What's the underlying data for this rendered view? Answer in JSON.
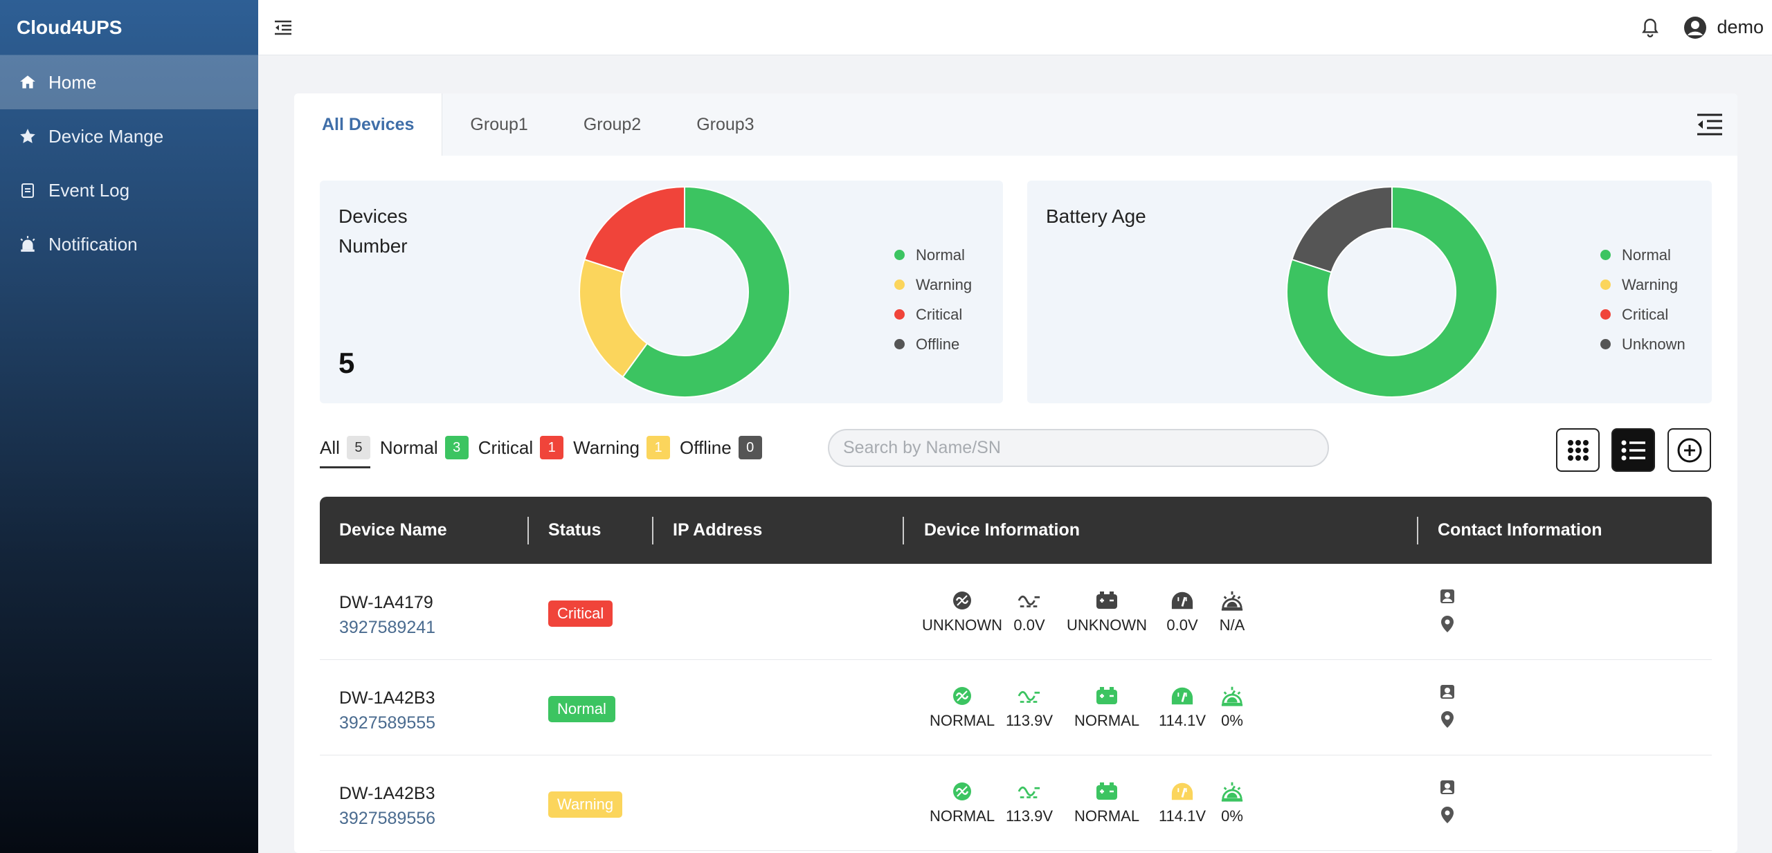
{
  "app": {
    "brand": "Cloud4UPS"
  },
  "sidebar": {
    "items": [
      {
        "label": "Home",
        "icon": "home-icon",
        "active": true
      },
      {
        "label": "Device Mange",
        "icon": "star-icon",
        "active": false
      },
      {
        "label": "Event Log",
        "icon": "clipboard-icon",
        "active": false
      },
      {
        "label": "Notification",
        "icon": "alarm-icon",
        "active": false
      }
    ]
  },
  "header": {
    "username": "demo"
  },
  "tabs": [
    {
      "label": "All Devices",
      "active": true
    },
    {
      "label": "Group1",
      "active": false
    },
    {
      "label": "Group2",
      "active": false
    },
    {
      "label": "Group3",
      "active": false
    }
  ],
  "colors": {
    "normal": "#3cc461",
    "warning": "#fbd55c",
    "critical": "#f0443a",
    "offline": "#555555",
    "accent": "#3f6ea8"
  },
  "devices_card": {
    "title_line1": "Devices",
    "title_line2": "Number",
    "total": "5",
    "legend": [
      "Normal",
      "Warning",
      "Critical",
      "Offline"
    ]
  },
  "battery_card": {
    "title": "Battery Age",
    "legend": [
      "Normal",
      "Warning",
      "Critical",
      "Unknown"
    ]
  },
  "chart_data": [
    {
      "type": "pie",
      "labels": [
        "Normal",
        "Warning",
        "Critical",
        "Offline"
      ],
      "values": [
        3,
        1,
        1,
        0
      ],
      "colors": [
        "#3cc461",
        "#fbd55c",
        "#f0443a",
        "#555555"
      ],
      "legend": "right"
    },
    {
      "type": "pie",
      "labels": [
        "Normal",
        "Warning",
        "Critical",
        "Unknown"
      ],
      "values": [
        4,
        0,
        0,
        1
      ],
      "colors": [
        "#3cc461",
        "#fbd55c",
        "#f0443a",
        "#555555"
      ],
      "legend": "right"
    }
  ],
  "filters": {
    "all": {
      "label": "All",
      "count": "5"
    },
    "normal": {
      "label": "Normal",
      "count": "3"
    },
    "critical": {
      "label": "Critical",
      "count": "1"
    },
    "warning": {
      "label": "Warning",
      "count": "1"
    },
    "offline": {
      "label": "Offline",
      "count": "0"
    }
  },
  "search": {
    "placeholder": "Search by Name/SN",
    "value": ""
  },
  "table": {
    "headers": {
      "name": "Device Name",
      "status": "Status",
      "ip": "IP Address",
      "info": "Device Information",
      "contact": "Contact Information"
    },
    "rows": [
      {
        "name": "DW-1A4179",
        "sn": "3927589241",
        "status": "Critical",
        "ip": "",
        "input_status": "UNKNOWN",
        "input_voltage": "0.0V",
        "battery_status": "UNKNOWN",
        "battery_voltage": "0.0V",
        "load": "N/A",
        "icon_colors": [
          "#444444",
          "#444444",
          "#444444",
          "#444444",
          "#444444"
        ]
      },
      {
        "name": "DW-1A42B3",
        "sn": "3927589555",
        "status": "Normal",
        "ip": "",
        "input_status": "NORMAL",
        "input_voltage": "113.9V",
        "battery_status": "NORMAL",
        "battery_voltage": "114.1V",
        "load": "0%",
        "icon_colors": [
          "#3cc461",
          "#3cc461",
          "#3cc461",
          "#3cc461",
          "#3cc461"
        ]
      },
      {
        "name": "DW-1A42B3",
        "sn": "3927589556",
        "status": "Warning",
        "ip": "",
        "input_status": "NORMAL",
        "input_voltage": "113.9V",
        "battery_status": "NORMAL",
        "battery_voltage": "114.1V",
        "load": "0%",
        "icon_colors": [
          "#3cc461",
          "#3cc461",
          "#3cc461",
          "#fbd55c",
          "#3cc461"
        ]
      }
    ]
  }
}
